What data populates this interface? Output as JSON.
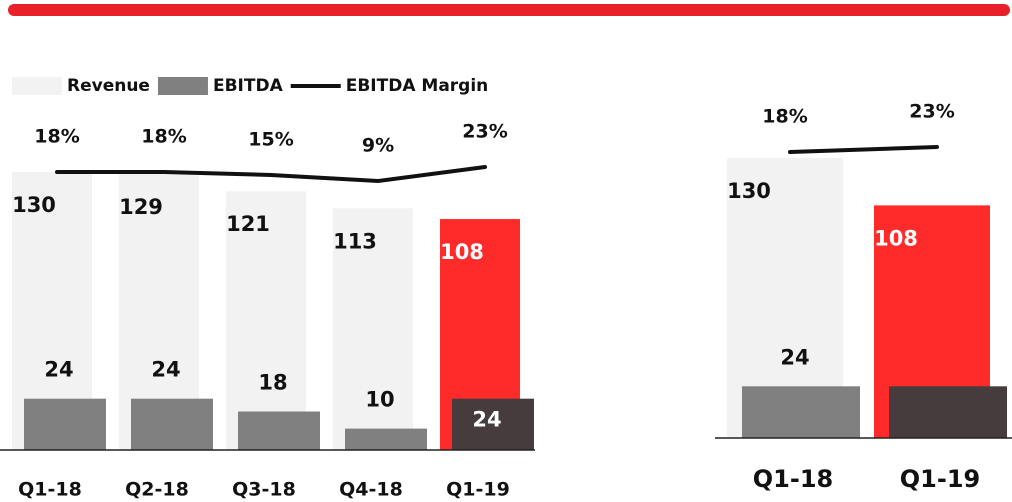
{
  "chart_data": [
    {
      "type": "bar",
      "categories": [
        "Q1-18",
        "Q2-18",
        "Q3-18",
        "Q4-18",
        "Q1-19"
      ],
      "series": [
        {
          "name": "Revenue",
          "color": "#f2f2f2",
          "colors": [
            "#f2f2f2",
            "#f2f2f2",
            "#f2f2f2",
            "#f2f2f2",
            "#ff2a2a"
          ],
          "values": [
            130,
            129,
            121,
            113,
            108
          ]
        },
        {
          "name": "EBITDA",
          "color": "#808080",
          "colors": [
            "#808080",
            "#808080",
            "#808080",
            "#808080",
            "#463c3e"
          ],
          "values": [
            24,
            24,
            18,
            10,
            24
          ]
        },
        {
          "name": "EBITDA Margin",
          "color": "#111111",
          "axis": "y2",
          "values": [
            18,
            18,
            15,
            9,
            23
          ],
          "value_labels": [
            "18%",
            "18%",
            "15%",
            "9%",
            "23%"
          ]
        }
      ],
      "ylim": [
        0,
        130
      ],
      "y2lim": [
        0,
        100
      ],
      "legend": "top-left"
    },
    {
      "type": "bar",
      "categories": [
        "Q1-18",
        "Q1-19"
      ],
      "series": [
        {
          "name": "Revenue",
          "color": "#f2f2f2",
          "colors": [
            "#f2f2f2",
            "#ff2a2a"
          ],
          "values": [
            130,
            108
          ]
        },
        {
          "name": "EBITDA",
          "color": "#808080",
          "colors": [
            "#808080",
            "#463c3e"
          ],
          "values": [
            24,
            24
          ]
        },
        {
          "name": "EBITDA Margin",
          "color": "#111111",
          "axis": "y2",
          "values": [
            18,
            23
          ],
          "value_labels": [
            "18%",
            "23%"
          ]
        }
      ],
      "ylim": [
        0,
        130
      ],
      "y2lim": [
        0,
        100
      ]
    }
  ]
}
